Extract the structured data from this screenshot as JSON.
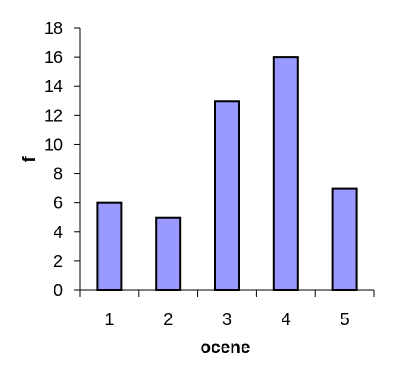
{
  "chart_data": {
    "type": "bar",
    "title": "",
    "xlabel": "ocene",
    "ylabel": "f",
    "categories": [
      "1",
      "2",
      "3",
      "4",
      "5"
    ],
    "values": [
      6,
      5,
      13,
      16,
      7
    ],
    "ylim": [
      0,
      18
    ],
    "y_ticks": [
      "0",
      "2",
      "4",
      "6",
      "8",
      "10",
      "12",
      "14",
      "16",
      "18"
    ],
    "grid": false,
    "legend": "none",
    "colors": {
      "bar_fill": "#9999ff",
      "bar_stroke": "#000000",
      "axis": "#000000"
    }
  }
}
